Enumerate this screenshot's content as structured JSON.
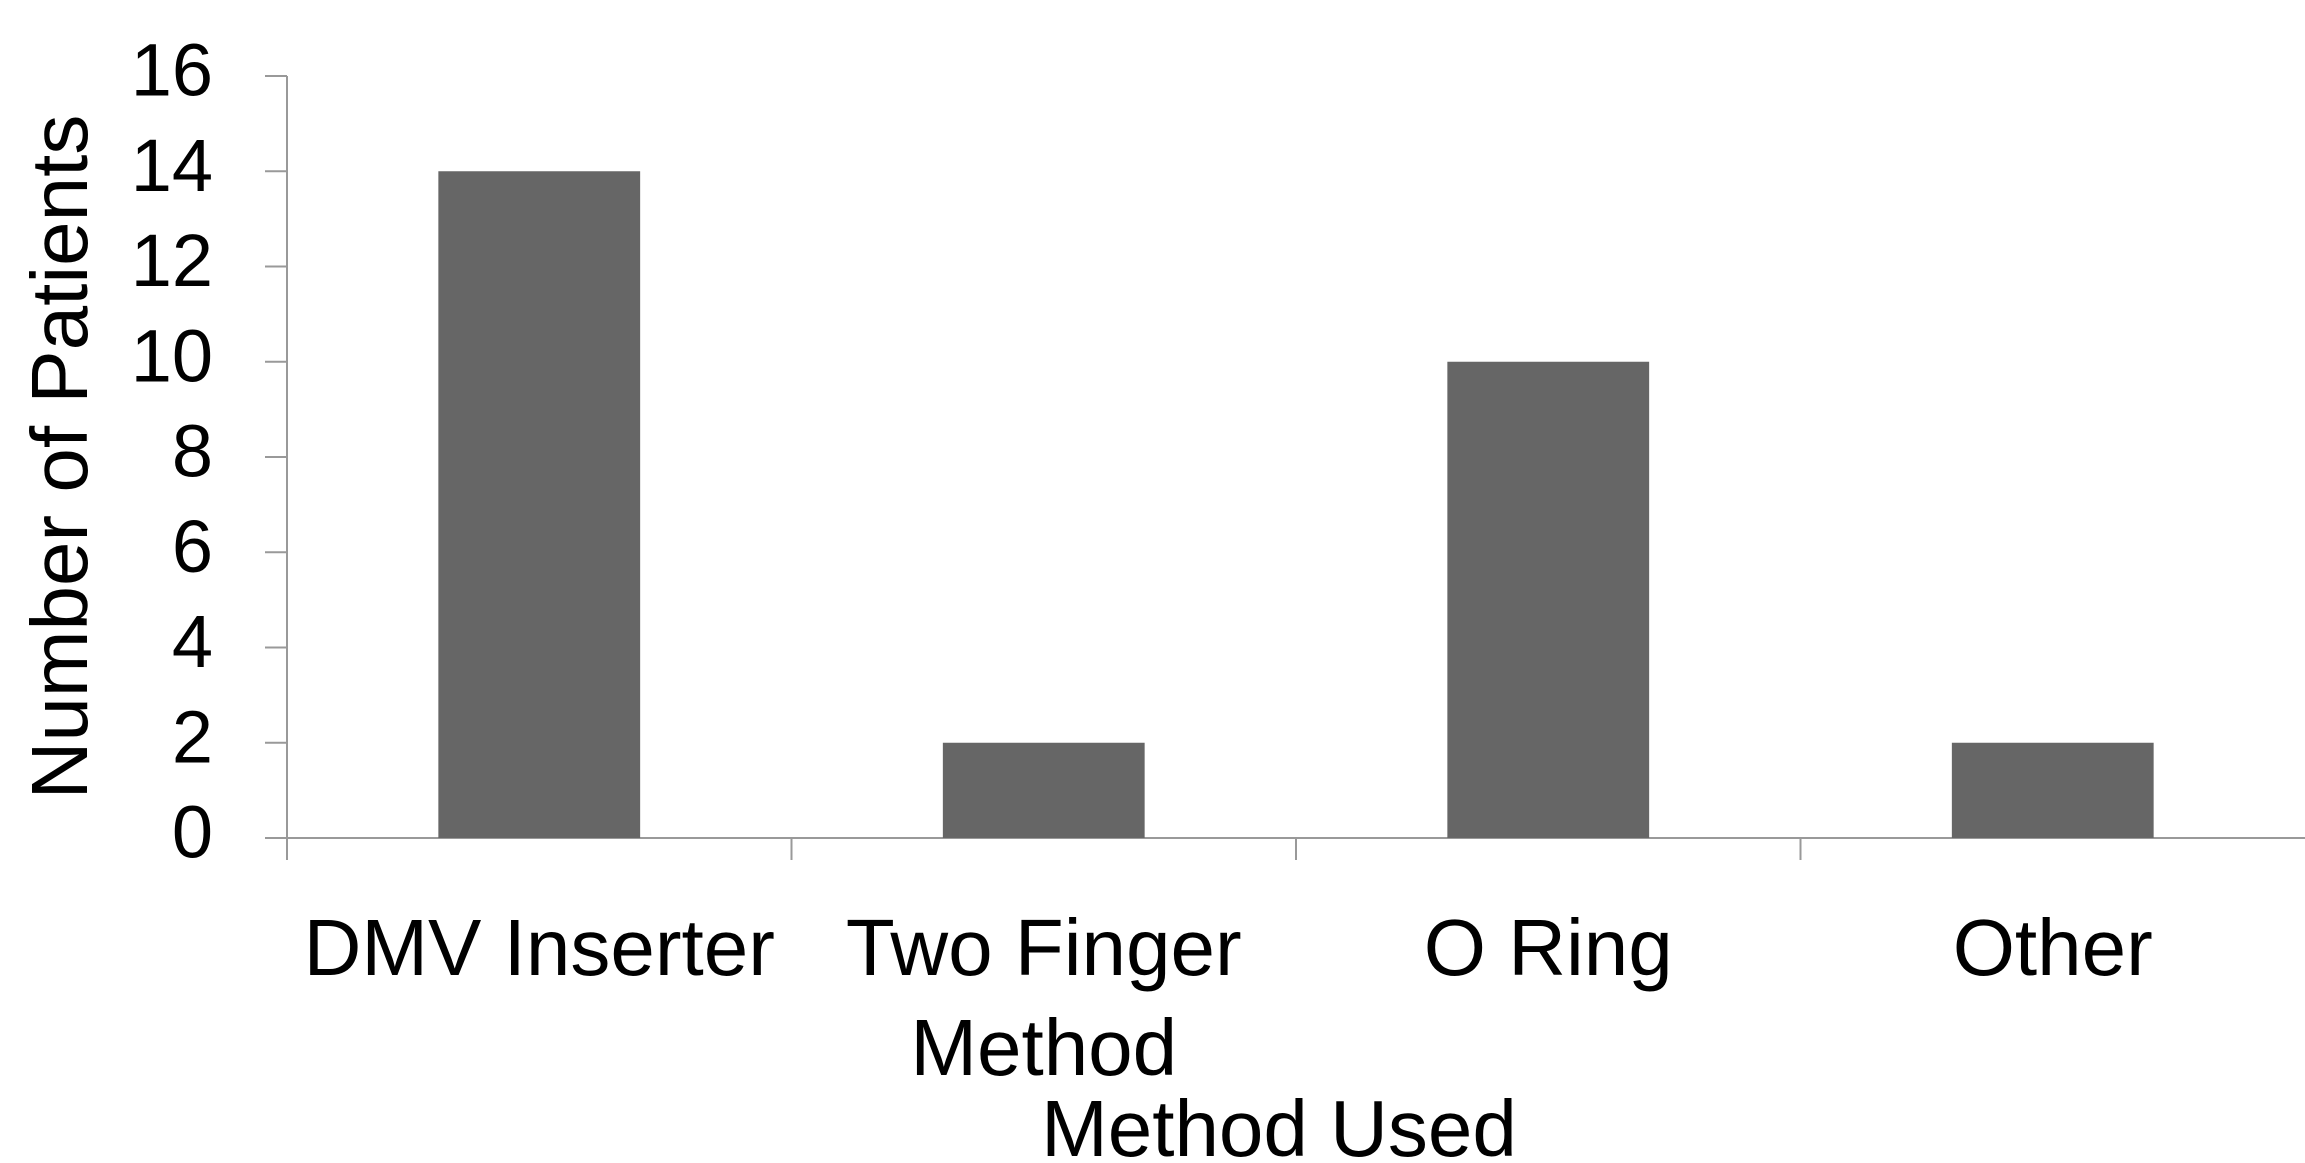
{
  "chart_data": {
    "type": "bar",
    "categories": [
      "DMV Inserter",
      "Two Finger Method",
      "O Ring",
      "Other"
    ],
    "values": [
      14,
      2,
      10,
      2
    ],
    "color": "#666666",
    "ylim": [
      0,
      16
    ],
    "yticks": [
      0,
      2,
      4,
      6,
      8,
      10,
      12,
      14,
      16
    ],
    "y_label": "Number of Patients",
    "x_label": "Method Used",
    "grid": false
  }
}
